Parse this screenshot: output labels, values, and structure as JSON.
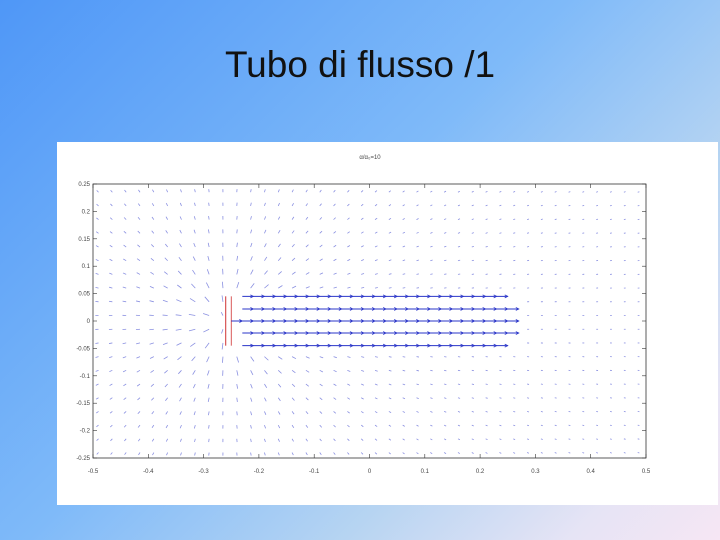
{
  "slide": {
    "title": "Tubo di flusso /1"
  },
  "chart_data": {
    "type": "quiver",
    "title": "α/α₀=10",
    "xlim": [
      -0.5,
      0.5
    ],
    "ylim": [
      -0.25,
      0.25
    ],
    "xticks": [
      "-0.5",
      "-0.4",
      "-0.3",
      "-0.2",
      "-0.1",
      "0",
      "0.1",
      "0.2",
      "0.3",
      "0.4",
      "0.5"
    ],
    "yticks": [
      "0.25",
      "0.2",
      "0.15",
      "0.1",
      "0.05",
      "0",
      "-0.05",
      "-0.1",
      "-0.15",
      "-0.2",
      "-0.25"
    ],
    "grid": false,
    "source_segment": {
      "x": -0.26,
      "y": [
        -0.045,
        0.045
      ],
      "color": "#d03030"
    },
    "streamlines": [
      {
        "y": 0.045,
        "x": [
          -0.23,
          0.25
        ]
      },
      {
        "y": 0.022,
        "x": [
          -0.23,
          0.27
        ]
      },
      {
        "y": 0.0,
        "x": [
          -0.25,
          0.27
        ]
      },
      {
        "y": -0.022,
        "x": [
          -0.23,
          0.27
        ]
      },
      {
        "y": -0.045,
        "x": [
          -0.23,
          0.25
        ]
      }
    ],
    "streamline_color": "#2a35c8",
    "vector_color": "#2a35c8"
  }
}
